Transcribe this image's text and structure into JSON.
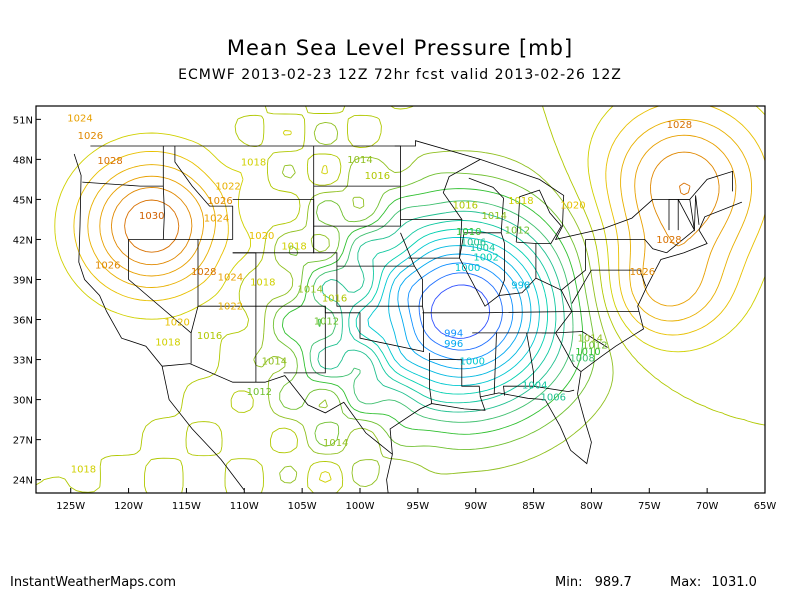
{
  "title": "Mean Sea Level Pressure [mb]",
  "subtitle": "ECMWF 2013-02-23 12Z 72hr fcst valid 2013-02-26 12Z",
  "footer": {
    "site": "InstantWeatherMaps.com",
    "min_label": "Min:",
    "min_value": "989.7",
    "max_label": "Max:",
    "max_value": "1031.0"
  },
  "map": {
    "lon_range": [
      -128,
      -65
    ],
    "lat_range": [
      23,
      52
    ],
    "lat_ticks": [
      "51N",
      "48N",
      "45N",
      "42N",
      "39N",
      "36N",
      "33N",
      "30N",
      "27N",
      "24N"
    ],
    "lat_values": [
      51,
      48,
      45,
      42,
      39,
      36,
      33,
      30,
      27,
      24
    ],
    "lon_ticks": [
      "125W",
      "120W",
      "115W",
      "110W",
      "105W",
      "100W",
      "95W",
      "90W",
      "85W",
      "80W",
      "75W",
      "70W",
      "65W"
    ],
    "lon_values": [
      -125,
      -120,
      -115,
      -110,
      -105,
      -100,
      -95,
      -90,
      -85,
      -80,
      -75,
      -70,
      -65
    ],
    "low_center": {
      "lon": -91.3,
      "lat": 36.6
    },
    "contour_colors": {
      "990": "#3050ff",
      "992": "#2070ff",
      "994": "#1090ff",
      "996": "#00a8f0",
      "998": "#00b8e0",
      "1000": "#00c8d0",
      "1002": "#00d0b0",
      "1004": "#10c8a0",
      "1006": "#20c090",
      "1008": "#40c070",
      "1010": "#30c030",
      "1012": "#70c030",
      "1014": "#90c020",
      "1016": "#b0c800",
      "1018": "#d0d000",
      "1020": "#e8c000",
      "1022": "#e8b000",
      "1024": "#e8a000",
      "1026": "#e08800",
      "1028": "#d87000",
      "1030": "#d06000"
    },
    "contour_labels": [
      {
        "text": "1024",
        "lon": -124.2,
        "lat": 51.1,
        "level": "1024"
      },
      {
        "text": "1026",
        "lon": -123.3,
        "lat": 49.8,
        "level": "1026"
      },
      {
        "text": "1028",
        "lon": -121.6,
        "lat": 47.9,
        "level": "1028"
      },
      {
        "text": "1030",
        "lon": -118.0,
        "lat": 43.8,
        "level": "1030"
      },
      {
        "text": "1026",
        "lon": -121.8,
        "lat": 40.1,
        "level": "1026"
      },
      {
        "text": "1028",
        "lon": -113.5,
        "lat": 39.6,
        "level": "1028"
      },
      {
        "text": "1026",
        "lon": -112.1,
        "lat": 44.9,
        "level": "1026"
      },
      {
        "text": "1024",
        "lon": -112.4,
        "lat": 43.6,
        "level": "1024"
      },
      {
        "text": "1022",
        "lon": -111.4,
        "lat": 46.0,
        "level": "1022"
      },
      {
        "text": "1018",
        "lon": -109.2,
        "lat": 47.8,
        "level": "1018"
      },
      {
        "text": "1020",
        "lon": -108.5,
        "lat": 42.3,
        "level": "1020"
      },
      {
        "text": "1018",
        "lon": -105.7,
        "lat": 41.5,
        "level": "1018"
      },
      {
        "text": "1024",
        "lon": -111.2,
        "lat": 39.2,
        "level": "1024"
      },
      {
        "text": "1018",
        "lon": -108.4,
        "lat": 38.8,
        "level": "1018"
      },
      {
        "text": "1022",
        "lon": -111.2,
        "lat": 37.0,
        "level": "1022"
      },
      {
        "text": "1020",
        "lon": -115.8,
        "lat": 35.8,
        "level": "1020"
      },
      {
        "text": "1016",
        "lon": -113.0,
        "lat": 34.8,
        "level": "1016"
      },
      {
        "text": "1018",
        "lon": -116.6,
        "lat": 34.3,
        "level": "1018"
      },
      {
        "text": "1014",
        "lon": -104.3,
        "lat": 38.3,
        "level": "1014"
      },
      {
        "text": "1016",
        "lon": -102.2,
        "lat": 37.6,
        "level": "1016"
      },
      {
        "text": "1012",
        "lon": -102.9,
        "lat": 35.9,
        "level": "1012"
      },
      {
        "text": "1014",
        "lon": -107.4,
        "lat": 32.9,
        "level": "1014"
      },
      {
        "text": "1012",
        "lon": -108.7,
        "lat": 30.6,
        "level": "1012"
      },
      {
        "text": "1014",
        "lon": -102.1,
        "lat": 26.8,
        "level": "1014"
      },
      {
        "text": "1018",
        "lon": -123.9,
        "lat": 24.8,
        "level": "1018"
      },
      {
        "text": "1014",
        "lon": -100.0,
        "lat": 48.0,
        "level": "1014"
      },
      {
        "text": "1016",
        "lon": -98.5,
        "lat": 46.8,
        "level": "1016"
      },
      {
        "text": "1016",
        "lon": -90.9,
        "lat": 44.6,
        "level": "1016"
      },
      {
        "text": "1014",
        "lon": -88.4,
        "lat": 43.8,
        "level": "1014"
      },
      {
        "text": "1010",
        "lon": -90.6,
        "lat": 42.6,
        "level": "1010"
      },
      {
        "text": "1006",
        "lon": -90.2,
        "lat": 41.8,
        "level": "1006"
      },
      {
        "text": "1004",
        "lon": -89.4,
        "lat": 41.4,
        "level": "1004"
      },
      {
        "text": "1002",
        "lon": -89.1,
        "lat": 40.7,
        "level": "1002"
      },
      {
        "text": "1000",
        "lon": -90.7,
        "lat": 39.9,
        "level": "1000"
      },
      {
        "text": "1012",
        "lon": -86.4,
        "lat": 42.7,
        "level": "1012"
      },
      {
        "text": "1018",
        "lon": -86.1,
        "lat": 44.9,
        "level": "1018"
      },
      {
        "text": "1020",
        "lon": -81.6,
        "lat": 44.6,
        "level": "1020"
      },
      {
        "text": "998",
        "lon": -86.1,
        "lat": 38.6,
        "level": "998"
      },
      {
        "text": "994",
        "lon": -91.9,
        "lat": 35.0,
        "level": "994"
      },
      {
        "text": "996",
        "lon": -91.9,
        "lat": 34.2,
        "level": "996"
      },
      {
        "text": "1000",
        "lon": -90.3,
        "lat": 32.9,
        "level": "1000"
      },
      {
        "text": "1004",
        "lon": -84.9,
        "lat": 31.1,
        "level": "1004"
      },
      {
        "text": "1006",
        "lon": -83.3,
        "lat": 30.2,
        "level": "1006"
      },
      {
        "text": "1008",
        "lon": -80.8,
        "lat": 33.1,
        "level": "1008"
      },
      {
        "text": "1010",
        "lon": -80.3,
        "lat": 33.6,
        "level": "1010"
      },
      {
        "text": "1012",
        "lon": -79.7,
        "lat": 34.1,
        "level": "1012"
      },
      {
        "text": "1014",
        "lon": -80.1,
        "lat": 34.6,
        "level": "1014"
      },
      {
        "text": "1026",
        "lon": -75.6,
        "lat": 39.6,
        "level": "1026"
      },
      {
        "text": "1028",
        "lon": -73.3,
        "lat": 42.0,
        "level": "1028"
      },
      {
        "text": "1028",
        "lon": -72.4,
        "lat": 50.6,
        "level": "1028"
      }
    ]
  }
}
